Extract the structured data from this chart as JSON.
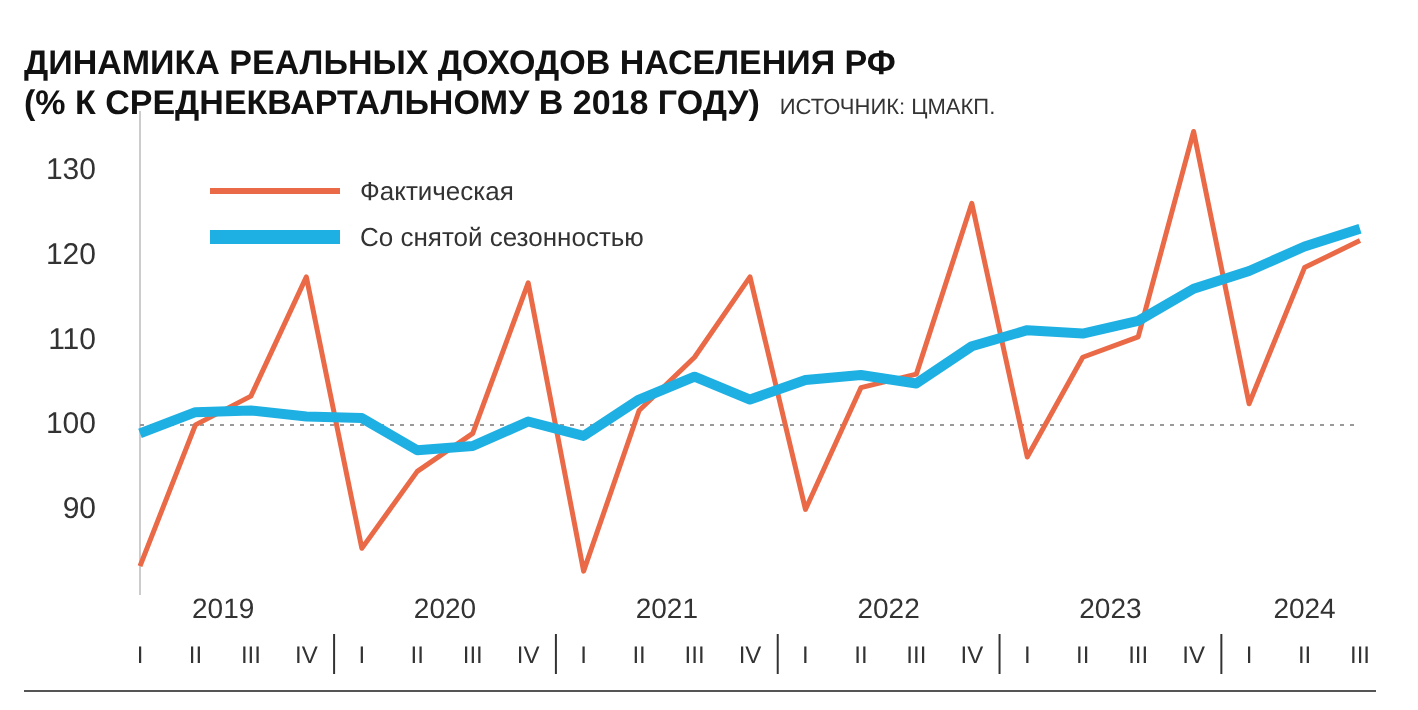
{
  "chart_data": {
    "type": "line",
    "title": "ДИНАМИКА РЕАЛЬНЫХ ДОХОДОВ НАСЕЛЕНИЯ РФ",
    "subtitle": "(% К СРЕДНЕКВАРТАЛЬНОМУ В 2018 ГОДУ)",
    "annotations": [
      "ИСТОЧНИК: ЦМАКП.",
      "2019",
      "2020",
      "2021",
      "2022",
      "2023",
      "2024"
    ],
    "categories": [
      "I",
      "II",
      "III",
      "IV",
      "I",
      "II",
      "III",
      "IV",
      "I",
      "II",
      "III",
      "IV",
      "I",
      "II",
      "III",
      "IV",
      "I",
      "II",
      "III",
      "IV",
      "I",
      "II",
      "III"
    ],
    "series": [
      {
        "name": "Фактическая",
        "color": "#ea6a47",
        "values": [
          83.3,
          100,
          103.4,
          117.5,
          85.4,
          94.5,
          99,
          116.8,
          82.7,
          101.7,
          108,
          117.5,
          90,
          104.4,
          106,
          126.2,
          96.2,
          108,
          110.4,
          134.7,
          102.5,
          118.6,
          121.8
        ]
      },
      {
        "name": "Со снятой сезонностью",
        "color": "#1fb0e3",
        "values": [
          99,
          101.5,
          101.7,
          101,
          100.8,
          97,
          97.5,
          100.4,
          98.7,
          103,
          105.7,
          103,
          105.3,
          105.9,
          104.9,
          109.3,
          111.2,
          110.8,
          112.3,
          116.1,
          118.2,
          121.1,
          123.2
        ]
      }
    ],
    "ylim": [
      80,
      137
    ],
    "yticks": [
      90,
      100,
      110,
      120,
      130
    ],
    "ref_lines": [
      {
        "axis": "y",
        "value": 100,
        "color": "#999999",
        "line_style": "dotted"
      }
    ],
    "grid": false,
    "legend": "top left",
    "marker": "none",
    "line_style": "solid"
  }
}
